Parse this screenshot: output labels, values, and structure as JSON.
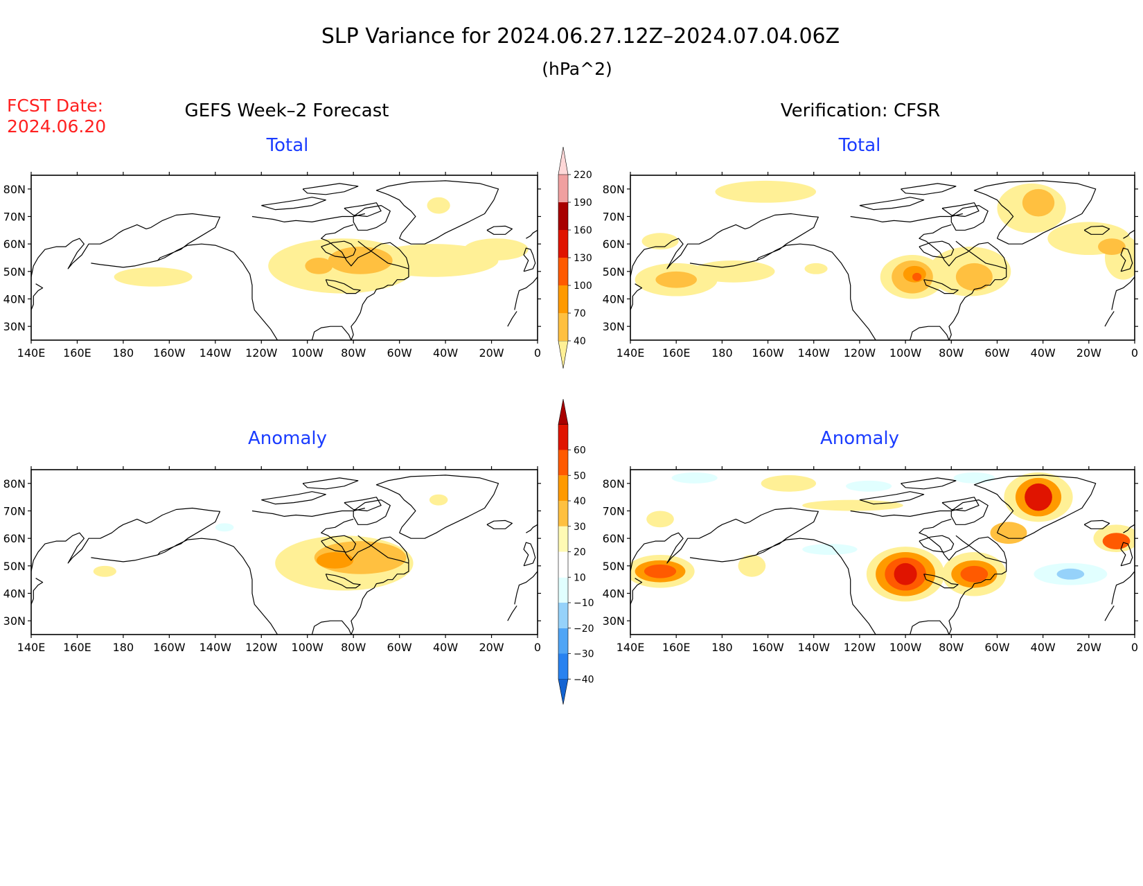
{
  "title": "SLP Variance for 2024.06.27.12Z–2024.07.04.06Z",
  "units": "(hPa^2)",
  "fcst_label": "FCST Date:",
  "fcst_date": "2024.06.20",
  "left_header": "GEFS Week–2 Forecast",
  "right_header": "Verification: CFSR",
  "panels": {
    "gefs_total": {
      "label": "Total"
    },
    "gefs_anomaly": {
      "label": "Anomaly"
    },
    "cfsr_total": {
      "label": "Total"
    },
    "cfsr_anomaly": {
      "label": "Anomaly"
    }
  },
  "lat_labels": [
    "80N",
    "70N",
    "60N",
    "50N",
    "40N",
    "30N"
  ],
  "lon_labels": [
    "140E",
    "160E",
    "180",
    "160W",
    "140W",
    "120W",
    "100W",
    "80W",
    "60W",
    "40W",
    "20W",
    "0"
  ],
  "colors": {
    "title": "#000000",
    "fcst": "#ff2020",
    "panel_label": "#1a3cff",
    "map_line": "#000000"
  },
  "total_colorbar": {
    "labels": [
      "40",
      "70",
      "100",
      "130",
      "160",
      "190",
      "220"
    ],
    "colors": [
      "#fff096",
      "#ffc040",
      "#ff9a00",
      "#ff5a00",
      "#e01400",
      "#a80000",
      "#f0a0a0",
      "#ffd8d8"
    ]
  },
  "anomaly_colorbar": {
    "labels": [
      "−40",
      "−30",
      "−20",
      "−10",
      "10",
      "20",
      "30",
      "40",
      "50",
      "60"
    ],
    "colors": [
      "#1464d2",
      "#2882f0",
      "#50a5f5",
      "#96d2fa",
      "#e1ffff",
      "#ffffff",
      "#fffab4",
      "#ffc040",
      "#ff9a00",
      "#ff5a00",
      "#e01400",
      "#a80000"
    ]
  },
  "chart_data": {
    "type": "heatmap",
    "lon_range": [
      140,
      360
    ],
    "lat_range": [
      25,
      85
    ],
    "maps": {
      "gefs_total": [
        {
          "lon": 193,
          "lat": 48,
          "rx": 17,
          "ry": 3.5,
          "level": 0
        },
        {
          "lon": 275,
          "lat": 52,
          "rx": 32,
          "ry": 10,
          "level": 0
        },
        {
          "lon": 315,
          "lat": 54,
          "rx": 28,
          "ry": 6,
          "level": 0
        },
        {
          "lon": 342,
          "lat": 58,
          "rx": 14,
          "ry": 4,
          "level": 0
        },
        {
          "lon": 317,
          "lat": 74,
          "rx": 5,
          "ry": 3,
          "level": 0
        },
        {
          "lon": 283,
          "lat": 54,
          "rx": 14,
          "ry": 5,
          "level": 1
        },
        {
          "lon": 265,
          "lat": 52,
          "rx": 6,
          "ry": 3,
          "level": 1
        }
      ],
      "gefs_anomaly": [
        {
          "lon": 276,
          "lat": 51,
          "rx": 30,
          "ry": 10,
          "level": 0
        },
        {
          "lon": 283,
          "lat": 53,
          "rx": 20,
          "ry": 6,
          "level": 1
        },
        {
          "lon": 272,
          "lat": 52,
          "rx": 8,
          "ry": 3,
          "level": 2
        },
        {
          "lon": 172,
          "lat": 48,
          "rx": 5,
          "ry": 2,
          "level": 0
        },
        {
          "lon": 317,
          "lat": 74,
          "rx": 4,
          "ry": 2,
          "level": 0
        },
        {
          "lon": 224,
          "lat": 64,
          "rx": 4,
          "ry": 1.5,
          "level": -1
        }
      ],
      "cfsr_total": [
        {
          "lon": 160,
          "lat": 47,
          "rx": 18,
          "ry": 6,
          "level": 0
        },
        {
          "lon": 185,
          "lat": 50,
          "rx": 18,
          "ry": 4,
          "level": 0
        },
        {
          "lon": 153,
          "lat": 61,
          "rx": 8,
          "ry": 3,
          "level": 0
        },
        {
          "lon": 199,
          "lat": 79,
          "rx": 22,
          "ry": 4,
          "level": 0
        },
        {
          "lon": 221,
          "lat": 51,
          "rx": 5,
          "ry": 2,
          "level": 0
        },
        {
          "lon": 263,
          "lat": 48,
          "rx": 14,
          "ry": 8,
          "level": 0
        },
        {
          "lon": 288,
          "lat": 50,
          "rx": 18,
          "ry": 9,
          "level": 0
        },
        {
          "lon": 315,
          "lat": 73,
          "rx": 15,
          "ry": 9,
          "level": 0
        },
        {
          "lon": 340,
          "lat": 62,
          "rx": 18,
          "ry": 6,
          "level": 0
        },
        {
          "lon": 355,
          "lat": 55,
          "rx": 8,
          "ry": 8,
          "level": 0
        },
        {
          "lon": 160,
          "lat": 47,
          "rx": 9,
          "ry": 3,
          "level": 1
        },
        {
          "lon": 263,
          "lat": 48,
          "rx": 9,
          "ry": 6,
          "level": 1
        },
        {
          "lon": 290,
          "lat": 48,
          "rx": 8,
          "ry": 5,
          "level": 1
        },
        {
          "lon": 318,
          "lat": 75,
          "rx": 7,
          "ry": 5,
          "level": 1
        },
        {
          "lon": 350,
          "lat": 59,
          "rx": 6,
          "ry": 3,
          "level": 1
        },
        {
          "lon": 264,
          "lat": 49,
          "rx": 5,
          "ry": 3,
          "level": 2
        },
        {
          "lon": 265,
          "lat": 48,
          "rx": 2,
          "ry": 1.5,
          "level": 3
        }
      ],
      "cfsr_anomaly": [
        {
          "lon": 153,
          "lat": 48,
          "rx": 15,
          "ry": 6,
          "level": 0
        },
        {
          "lon": 153,
          "lat": 48,
          "rx": 11,
          "ry": 4,
          "level": 2
        },
        {
          "lon": 153,
          "lat": 48,
          "rx": 7,
          "ry": 2.5,
          "level": 3
        },
        {
          "lon": 193,
          "lat": 50,
          "rx": 6,
          "ry": 4,
          "level": 0
        },
        {
          "lon": 153,
          "lat": 67,
          "rx": 6,
          "ry": 3,
          "level": 0
        },
        {
          "lon": 209,
          "lat": 80,
          "rx": 12,
          "ry": 3,
          "level": 0
        },
        {
          "lon": 237,
          "lat": 72,
          "rx": 22,
          "ry": 2,
          "level": 0
        },
        {
          "lon": 260,
          "lat": 47,
          "rx": 17,
          "ry": 10,
          "level": 0
        },
        {
          "lon": 260,
          "lat": 47,
          "rx": 13,
          "ry": 8,
          "level": 2
        },
        {
          "lon": 260,
          "lat": 47,
          "rx": 9,
          "ry": 6,
          "level": 3
        },
        {
          "lon": 260,
          "lat": 47,
          "rx": 5,
          "ry": 4,
          "level": 4
        },
        {
          "lon": 290,
          "lat": 47,
          "rx": 14,
          "ry": 8,
          "level": 0
        },
        {
          "lon": 290,
          "lat": 47,
          "rx": 10,
          "ry": 5,
          "level": 2
        },
        {
          "lon": 290,
          "lat": 47,
          "rx": 6,
          "ry": 3,
          "level": 3
        },
        {
          "lon": 318,
          "lat": 75,
          "rx": 15,
          "ry": 9,
          "level": 0
        },
        {
          "lon": 318,
          "lat": 75,
          "rx": 10,
          "ry": 7,
          "level": 2
        },
        {
          "lon": 318,
          "lat": 75,
          "rx": 6,
          "ry": 5,
          "level": 4
        },
        {
          "lon": 305,
          "lat": 62,
          "rx": 8,
          "ry": 4,
          "level": 1
        },
        {
          "lon": 352,
          "lat": 60,
          "rx": 10,
          "ry": 5,
          "level": 0
        },
        {
          "lon": 352,
          "lat": 59,
          "rx": 6,
          "ry": 3,
          "level": 3
        },
        {
          "lon": 244,
          "lat": 79,
          "rx": 10,
          "ry": 2,
          "level": -1
        },
        {
          "lon": 168,
          "lat": 82,
          "rx": 10,
          "ry": 2,
          "level": -1
        },
        {
          "lon": 332,
          "lat": 47,
          "rx": 16,
          "ry": 4,
          "level": -1
        },
        {
          "lon": 332,
          "lat": 47,
          "rx": 6,
          "ry": 2,
          "level": -2
        },
        {
          "lon": 227,
          "lat": 56,
          "rx": 12,
          "ry": 2,
          "level": -1
        },
        {
          "lon": 290,
          "lat": 82,
          "rx": 9,
          "ry": 2,
          "level": -1
        }
      ]
    }
  }
}
